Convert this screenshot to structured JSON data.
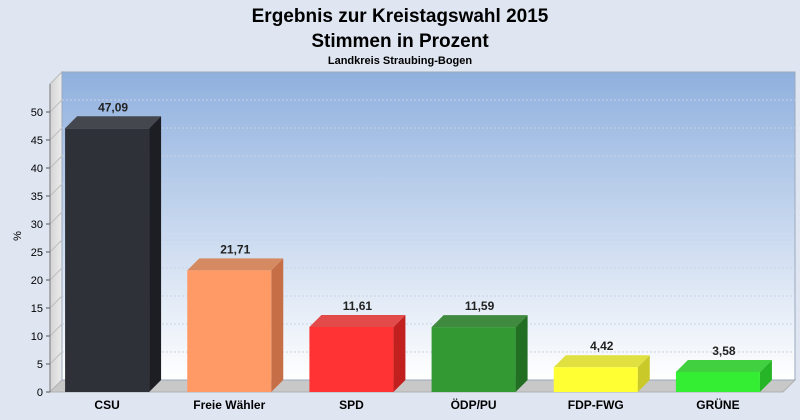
{
  "chart_data": {
    "type": "bar",
    "title": "Ergebnis zur Kreistagswahl 2015",
    "subtitle": "Stimmen in Prozent",
    "caption": "Landkreis Straubing-Bogen",
    "ylabel": "%",
    "xlabel": "",
    "ylim": [
      0,
      55
    ],
    "yticks": [
      0,
      5,
      10,
      15,
      20,
      25,
      30,
      35,
      40,
      45,
      50
    ],
    "grid": true,
    "legend": "none",
    "categories": [
      "CSU",
      "Freie Wähler",
      "SPD",
      "ÖDP/PU",
      "FDP-FWG",
      "GRÜNE"
    ],
    "values": [
      47.09,
      21.71,
      11.61,
      11.59,
      4.42,
      3.58
    ],
    "value_labels": [
      "47,09",
      "21,71",
      "11,61",
      "11,59",
      "4,42",
      "3,58"
    ],
    "colors": [
      "#2f3138",
      "#ff9966",
      "#ff3333",
      "#339933",
      "#ffff33",
      "#33ee33"
    ],
    "side_colors": [
      "#1c1e24",
      "#c66e45",
      "#c21f1f",
      "#226e22",
      "#c9c92a",
      "#26b526"
    ],
    "top_colors": [
      "#45474f",
      "#d68a62",
      "#e34a4a",
      "#3f8a3f",
      "#e0e040",
      "#40d040"
    ],
    "background_gradient": [
      "#8fb0de",
      "#ffffff"
    ]
  }
}
